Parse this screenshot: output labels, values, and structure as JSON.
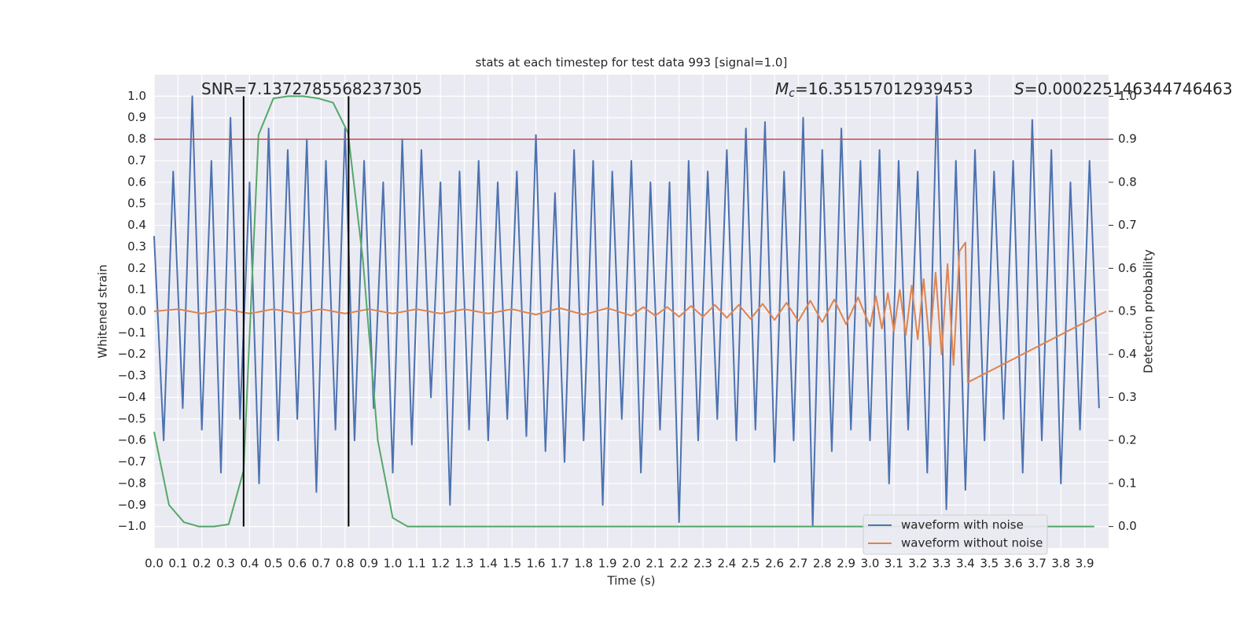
{
  "chart_data": {
    "type": "line",
    "title": "stats at each timestep for test data 993 [signal=1.0]",
    "xlabel": "Time (s)",
    "ylabel": "Whitened strain",
    "y2label": "Detection probability",
    "annotations": [
      {
        "text": "SNR=7.1372785568237305"
      },
      {
        "symbol": "M",
        "subscript": "c",
        "text": "=16.35157012939453"
      },
      {
        "symbol": "S",
        "text": "=0.000225146344746463"
      }
    ],
    "xlim": [
      0,
      4.0
    ],
    "ylim": [
      -1.1,
      1.1
    ],
    "y2lim": [
      -0.05,
      1.05
    ],
    "grid": true,
    "legend": "lower right",
    "hline": {
      "value": 0.8,
      "color": "#c44e52"
    },
    "vlines": {
      "x": [
        0.375,
        0.815
      ],
      "span": [
        -1,
        1
      ],
      "color": "#000000"
    },
    "series": [
      {
        "name": "waveform with noise",
        "color": "#4c72b0",
        "x": [
          0,
          0.04,
          0.08,
          0.12,
          0.16,
          0.2,
          0.24,
          0.28,
          0.32,
          0.36,
          0.4,
          0.44,
          0.48,
          0.52,
          0.56,
          0.6,
          0.64,
          0.68,
          0.72,
          0.76,
          0.8,
          0.84,
          0.88,
          0.92,
          0.96,
          1.0,
          1.04,
          1.08,
          1.12,
          1.16,
          1.2,
          1.24,
          1.28,
          1.32,
          1.36,
          1.4,
          1.44,
          1.48,
          1.52,
          1.56,
          1.6,
          1.64,
          1.68,
          1.72,
          1.76,
          1.8,
          1.84,
          1.88,
          1.92,
          1.96,
          2.0,
          2.04,
          2.08,
          2.12,
          2.16,
          2.2,
          2.24,
          2.28,
          2.32,
          2.36,
          2.4,
          2.44,
          2.48,
          2.52,
          2.56,
          2.6,
          2.64,
          2.68,
          2.72,
          2.76,
          2.8,
          2.84,
          2.88,
          2.92,
          2.96,
          3.0,
          3.04,
          3.08,
          3.12,
          3.16,
          3.2,
          3.24,
          3.28,
          3.32,
          3.36,
          3.4,
          3.44,
          3.48,
          3.52,
          3.56,
          3.6,
          3.64,
          3.68,
          3.72,
          3.76,
          3.8,
          3.84,
          3.88,
          3.92,
          3.96
        ],
        "values": [
          0.35,
          -0.6,
          0.65,
          -0.45,
          1.0,
          -0.55,
          0.7,
          -0.75,
          0.9,
          -0.5,
          0.6,
          -0.8,
          0.85,
          -0.6,
          0.75,
          -0.5,
          0.8,
          -0.84,
          0.7,
          -0.55,
          0.85,
          -0.6,
          0.7,
          -0.45,
          0.6,
          -0.75,
          0.8,
          -0.62,
          0.75,
          -0.4,
          0.6,
          -0.9,
          0.65,
          -0.55,
          0.7,
          -0.6,
          0.6,
          -0.5,
          0.65,
          -0.58,
          0.82,
          -0.65,
          0.55,
          -0.7,
          0.75,
          -0.6,
          0.7,
          -0.9,
          0.65,
          -0.5,
          0.7,
          -0.75,
          0.6,
          -0.55,
          0.6,
          -0.98,
          0.7,
          -0.6,
          0.65,
          -0.5,
          0.75,
          -0.6,
          0.85,
          -0.55,
          0.88,
          -0.7,
          0.65,
          -0.6,
          0.9,
          -1.0,
          0.75,
          -0.65,
          0.85,
          -0.55,
          0.7,
          -0.6,
          0.75,
          -0.8,
          0.7,
          -0.55,
          0.65,
          -0.75,
          1.0,
          -0.92,
          0.7,
          -0.83,
          0.75,
          -0.6,
          0.65,
          -0.5,
          0.7,
          -0.75,
          0.89,
          -0.6,
          0.75,
          -0.8,
          0.6,
          -0.55,
          0.7,
          -0.45
        ]
      },
      {
        "name": "waveform without noise",
        "color": "#dd8452",
        "x": [
          0,
          0.1,
          0.2,
          0.3,
          0.4,
          0.5,
          0.6,
          0.7,
          0.8,
          0.9,
          1.0,
          1.1,
          1.2,
          1.3,
          1.4,
          1.5,
          1.6,
          1.7,
          1.8,
          1.9,
          2.0,
          2.05,
          2.1,
          2.15,
          2.2,
          2.25,
          2.3,
          2.35,
          2.4,
          2.45,
          2.5,
          2.55,
          2.6,
          2.65,
          2.7,
          2.75,
          2.8,
          2.85,
          2.9,
          2.95,
          3.0,
          3.025,
          3.05,
          3.075,
          3.1,
          3.125,
          3.15,
          3.175,
          3.2,
          3.225,
          3.25,
          3.275,
          3.3,
          3.325,
          3.35,
          3.375,
          3.4,
          3.41,
          3.99
        ],
        "values": [
          0,
          0.01,
          -0.01,
          0.01,
          -0.01,
          0.01,
          -0.01,
          0.01,
          -0.01,
          0.01,
          -0.01,
          0.01,
          -0.01,
          0.01,
          -0.01,
          0.01,
          -0.015,
          0.015,
          -0.015,
          0.015,
          -0.02,
          0.02,
          -0.02,
          0.02,
          -0.025,
          0.025,
          -0.025,
          0.03,
          -0.03,
          0.03,
          -0.035,
          0.035,
          -0.04,
          0.04,
          -0.045,
          0.05,
          -0.05,
          0.055,
          -0.06,
          0.065,
          -0.07,
          0.07,
          -0.08,
          0.085,
          -0.09,
          0.1,
          -0.11,
          0.12,
          -0.13,
          0.15,
          -0.16,
          0.18,
          -0.2,
          0.22,
          -0.25,
          0.28,
          0.32,
          -0.33,
          0
        ]
      },
      {
        "color": "#55a868",
        "axis": "y2",
        "x": [
          0,
          0.0625,
          0.125,
          0.1875,
          0.25,
          0.3125,
          0.375,
          0.4375,
          0.5,
          0.5625,
          0.625,
          0.6875,
          0.75,
          0.8125,
          0.875,
          0.9375,
          1.0,
          1.0625,
          3.94
        ],
        "values": [
          0.22,
          0.05,
          0.01,
          0.0,
          0.0,
          0.005,
          0.13,
          0.91,
          0.995,
          1.0,
          1.0,
          0.995,
          0.985,
          0.915,
          0.62,
          0.2,
          0.02,
          0.0,
          0.0
        ]
      }
    ],
    "xticks": [
      {
        "value": 0,
        "label": "0.0"
      },
      {
        "value": 0.1,
        "label": "0.1"
      },
      {
        "value": 0.2,
        "label": "0.2"
      },
      {
        "value": 0.3,
        "label": "0.3"
      },
      {
        "value": 0.4,
        "label": "0.4"
      },
      {
        "value": 0.5,
        "label": "0.5"
      },
      {
        "value": 0.6,
        "label": "0.6"
      },
      {
        "value": 0.7,
        "label": "0.7"
      },
      {
        "value": 0.8,
        "label": "0.8"
      },
      {
        "value": 0.9,
        "label": "0.9"
      },
      {
        "value": 1,
        "label": "1.0"
      },
      {
        "value": 1.1,
        "label": "1.1"
      },
      {
        "value": 1.2,
        "label": "1.2"
      },
      {
        "value": 1.3,
        "label": "1.3"
      },
      {
        "value": 1.4,
        "label": "1.4"
      },
      {
        "value": 1.5,
        "label": "1.5"
      },
      {
        "value": 1.6,
        "label": "1.6"
      },
      {
        "value": 1.7,
        "label": "1.7"
      },
      {
        "value": 1.8,
        "label": "1.8"
      },
      {
        "value": 1.9,
        "label": "1.9"
      },
      {
        "value": 2,
        "label": "2.0"
      },
      {
        "value": 2.1,
        "label": "2.1"
      },
      {
        "value": 2.2,
        "label": "2.2"
      },
      {
        "value": 2.3,
        "label": "2.3"
      },
      {
        "value": 2.4,
        "label": "2.4"
      },
      {
        "value": 2.5,
        "label": "2.5"
      },
      {
        "value": 2.6,
        "label": "2.6"
      },
      {
        "value": 2.7,
        "label": "2.7"
      },
      {
        "value": 2.8,
        "label": "2.8"
      },
      {
        "value": 2.9,
        "label": "2.9"
      },
      {
        "value": 3,
        "label": "3.0"
      },
      {
        "value": 3.1,
        "label": "3.1"
      },
      {
        "value": 3.2,
        "label": "3.2"
      },
      {
        "value": 3.3,
        "label": "3.3"
      },
      {
        "value": 3.4,
        "label": "3.4"
      },
      {
        "value": 3.5,
        "label": "3.5"
      },
      {
        "value": 3.6,
        "label": "3.6"
      },
      {
        "value": 3.7,
        "label": "3.7"
      },
      {
        "value": 3.8,
        "label": "3.8"
      },
      {
        "value": 3.9,
        "label": "3.9"
      }
    ],
    "yticks": [
      {
        "value": -1,
        "label": "−1.0"
      },
      {
        "value": -0.9,
        "label": "−0.9"
      },
      {
        "value": -0.8,
        "label": "−0.8"
      },
      {
        "value": -0.7,
        "label": "−0.7"
      },
      {
        "value": -0.6,
        "label": "−0.6"
      },
      {
        "value": -0.5,
        "label": "−0.5"
      },
      {
        "value": -0.4,
        "label": "−0.4"
      },
      {
        "value": -0.3,
        "label": "−0.3"
      },
      {
        "value": -0.2,
        "label": "−0.2"
      },
      {
        "value": -0.1,
        "label": "−0.1"
      },
      {
        "value": 0,
        "label": "0.0"
      },
      {
        "value": 0.1,
        "label": "0.1"
      },
      {
        "value": 0.2,
        "label": "0.2"
      },
      {
        "value": 0.3,
        "label": "0.3"
      },
      {
        "value": 0.4,
        "label": "0.4"
      },
      {
        "value": 0.5,
        "label": "0.5"
      },
      {
        "value": 0.6,
        "label": "0.6"
      },
      {
        "value": 0.7,
        "label": "0.7"
      },
      {
        "value": 0.8,
        "label": "0.8"
      },
      {
        "value": 0.9,
        "label": "0.9"
      },
      {
        "value": 1,
        "label": "1.0"
      }
    ],
    "y2ticks": [
      {
        "value": 0,
        "label": "0.0"
      },
      {
        "value": 0.1,
        "label": "0.1"
      },
      {
        "value": 0.2,
        "label": "0.2"
      },
      {
        "value": 0.3,
        "label": "0.3"
      },
      {
        "value": 0.4,
        "label": "0.4"
      },
      {
        "value": 0.5,
        "label": "0.5"
      },
      {
        "value": 0.6,
        "label": "0.6"
      },
      {
        "value": 0.7,
        "label": "0.7"
      },
      {
        "value": 0.8,
        "label": "0.8"
      },
      {
        "value": 0.9,
        "label": "0.9"
      },
      {
        "value": 1,
        "label": "1.0"
      }
    ]
  }
}
